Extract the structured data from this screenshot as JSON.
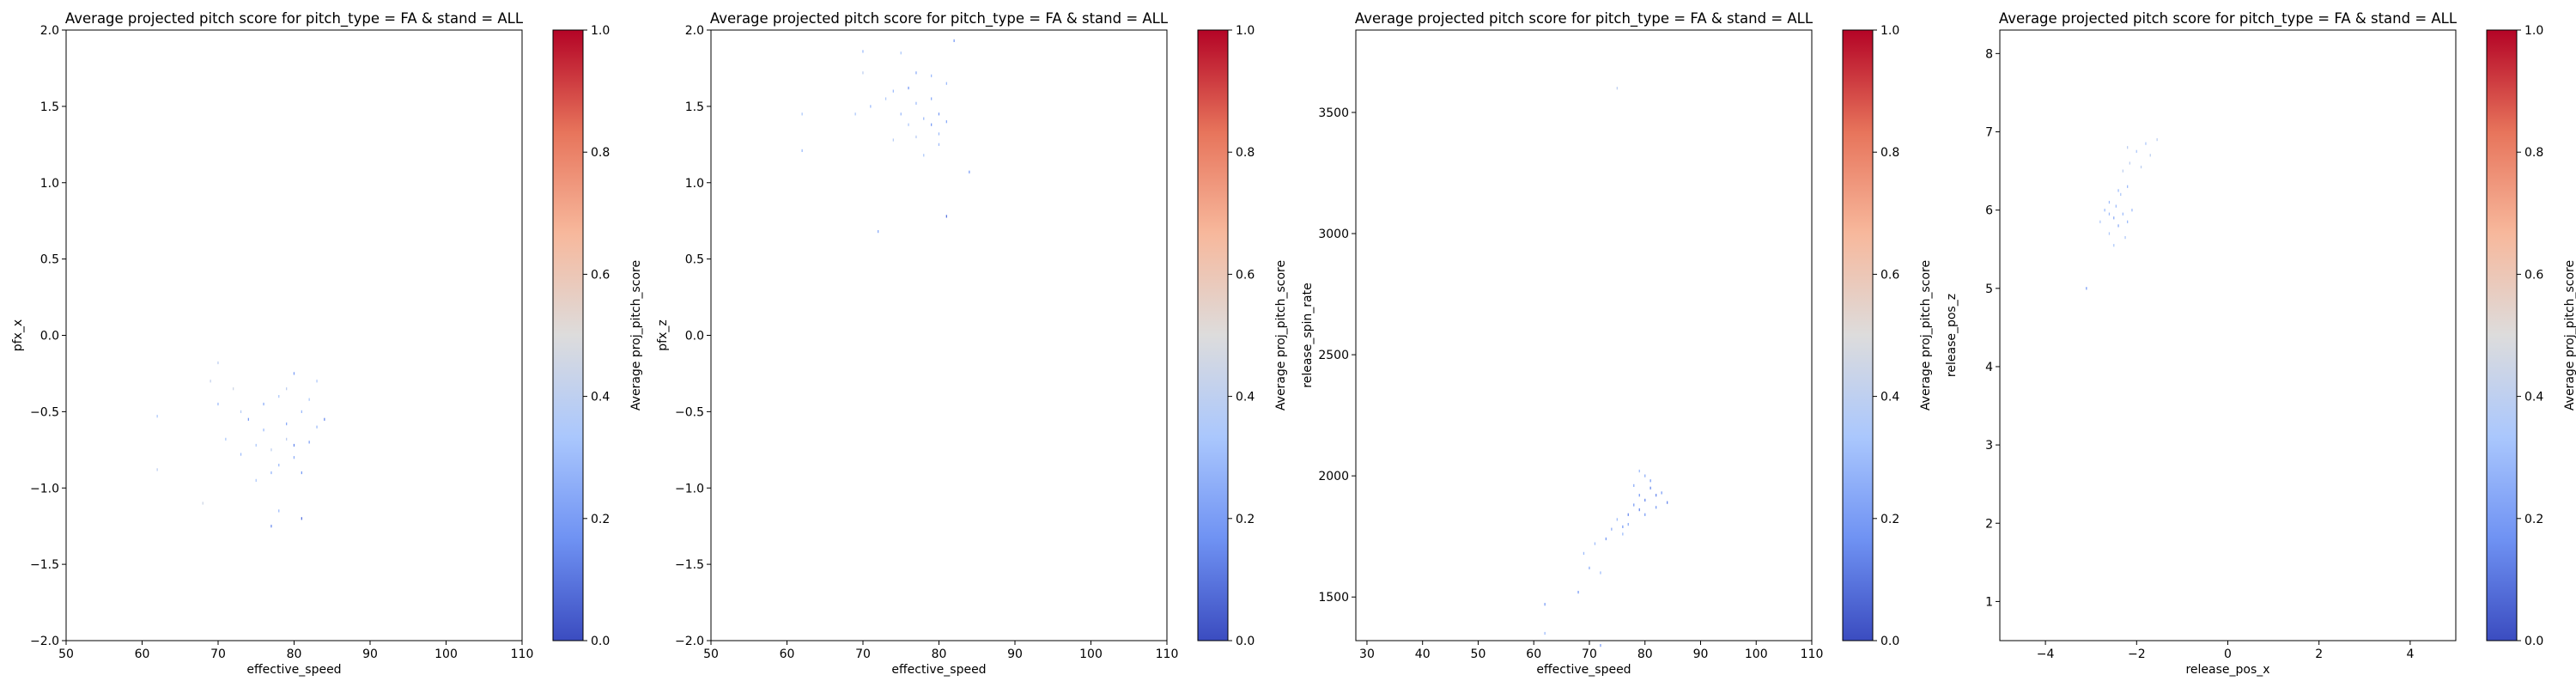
{
  "colorbar": {
    "label": "Average proj_pitch_score",
    "ticks": [
      0,
      0.2,
      0.4,
      0.6,
      0.8,
      1.0
    ],
    "tick_labels": [
      "0.0",
      "0.2",
      "0.4",
      "0.6",
      "0.8",
      "1.0"
    ],
    "colormap": "coolwarm",
    "colors": [
      "#3b4cc0",
      "#6f92f3",
      "#aac7fd",
      "#dddcdc",
      "#f7b89c",
      "#e7745b",
      "#b40426"
    ]
  },
  "chart_data": [
    {
      "type": "heatmap",
      "title": "Average projected pitch score for pitch_type = FA & stand = ALL",
      "xlabel": "effective_speed",
      "ylabel": "pfx_x",
      "xlim": [
        50,
        110
      ],
      "ylim": [
        -2.0,
        2.0
      ],
      "xticks": [
        50,
        60,
        70,
        80,
        90,
        100,
        110
      ],
      "xtick_labels": [
        "50",
        "60",
        "70",
        "80",
        "90",
        "100",
        "110"
      ],
      "yticks": [
        -2.0,
        -1.5,
        -1.0,
        -0.5,
        0.0,
        0.5,
        1.0,
        1.5,
        2.0
      ],
      "ytick_labels": [
        "−2.0",
        "−1.5",
        "−1.0",
        "−0.5",
        "0.0",
        "0.5",
        "1.0",
        "1.5",
        "2.0"
      ],
      "grid": false,
      "points": [
        [
          62,
          -0.53,
          0.35
        ],
        [
          62,
          -0.88,
          0.4
        ],
        [
          68,
          -1.1,
          0.45
        ],
        [
          69,
          -0.3,
          0.42
        ],
        [
          70,
          -0.18,
          0.4
        ],
        [
          70,
          -0.45,
          0.3
        ],
        [
          71,
          -0.68,
          0.35
        ],
        [
          72,
          -0.35,
          0.45
        ],
        [
          73,
          -0.5,
          0.38
        ],
        [
          73,
          -0.78,
          0.3
        ],
        [
          74,
          -0.55,
          0.2
        ],
        [
          75,
          -0.95,
          0.35
        ],
        [
          76,
          -0.45,
          0.25
        ],
        [
          76,
          -0.62,
          0.3
        ],
        [
          77,
          -0.75,
          0.4
        ],
        [
          77,
          -1.25,
          0.15
        ],
        [
          78,
          -0.4,
          0.35
        ],
        [
          78,
          -0.85,
          0.3
        ],
        [
          79,
          -0.58,
          0.25
        ],
        [
          79,
          -0.68,
          0.4
        ],
        [
          80,
          -0.25,
          0.2
        ],
        [
          80,
          -0.72,
          0.15
        ],
        [
          80,
          -0.8,
          0.25
        ],
        [
          81,
          -0.5,
          0.3
        ],
        [
          81,
          -0.9,
          0.2
        ],
        [
          81,
          -1.2,
          0.1
        ],
        [
          82,
          -0.42,
          0.35
        ],
        [
          82,
          -0.7,
          0.22
        ],
        [
          83,
          -0.6,
          0.3
        ],
        [
          84,
          -0.55,
          0.15
        ],
        [
          78,
          -1.15,
          0.3
        ],
        [
          75,
          -0.72,
          0.35
        ],
        [
          79,
          -0.35,
          0.4
        ],
        [
          83,
          -0.3,
          0.35
        ],
        [
          77,
          -0.9,
          0.28
        ]
      ]
    },
    {
      "type": "heatmap",
      "title": "Average projected pitch score for pitch_type = FA & stand = ALL",
      "xlabel": "effective_speed",
      "ylabel": "pfx_z",
      "xlim": [
        50,
        110
      ],
      "ylim": [
        -2.0,
        2.0
      ],
      "xticks": [
        50,
        60,
        70,
        80,
        90,
        100,
        110
      ],
      "xtick_labels": [
        "50",
        "60",
        "70",
        "80",
        "90",
        "100",
        "110"
      ],
      "yticks": [
        -2.0,
        -1.5,
        -1.0,
        -0.5,
        0.0,
        0.5,
        1.0,
        1.5,
        2.0
      ],
      "ytick_labels": [
        "−2.0",
        "−1.5",
        "−1.0",
        "−0.5",
        "0.0",
        "0.5",
        "1.0",
        "1.5",
        "2.0"
      ],
      "grid": false,
      "points": [
        [
          62,
          1.45,
          0.35
        ],
        [
          62,
          1.21,
          0.3
        ],
        [
          69,
          1.45,
          0.35
        ],
        [
          70,
          1.86,
          0.3
        ],
        [
          70,
          1.72,
          0.4
        ],
        [
          71,
          1.5,
          0.3
        ],
        [
          72,
          0.68,
          0.25
        ],
        [
          73,
          1.55,
          0.35
        ],
        [
          74,
          1.6,
          0.3
        ],
        [
          74,
          1.28,
          0.38
        ],
        [
          75,
          1.45,
          0.3
        ],
        [
          76,
          1.62,
          0.2
        ],
        [
          76,
          1.38,
          0.35
        ],
        [
          77,
          1.72,
          0.25
        ],
        [
          77,
          1.52,
          0.3
        ],
        [
          78,
          1.18,
          0.35
        ],
        [
          78,
          1.42,
          0.3
        ],
        [
          79,
          1.38,
          0.2
        ],
        [
          79,
          1.55,
          0.25
        ],
        [
          80,
          1.32,
          0.3
        ],
        [
          80,
          1.45,
          0.2
        ],
        [
          80,
          1.25,
          0.3
        ],
        [
          81,
          1.4,
          0.25
        ],
        [
          81,
          1.65,
          0.3
        ],
        [
          81,
          0.78,
          0.1
        ],
        [
          82,
          1.93,
          0.2
        ],
        [
          84,
          1.07,
          0.2
        ],
        [
          75,
          1.85,
          0.35
        ],
        [
          77,
          1.3,
          0.38
        ],
        [
          79,
          1.7,
          0.3
        ]
      ]
    },
    {
      "type": "heatmap",
      "title": "Average projected pitch score for pitch_type = FA & stand = ALL",
      "xlabel": "effective_speed",
      "ylabel": "release_spin_rate",
      "xlim": [
        28,
        110
      ],
      "ylim": [
        1320,
        3840
      ],
      "xticks": [
        30,
        40,
        50,
        60,
        70,
        80,
        90,
        100,
        110
      ],
      "xtick_labels": [
        "30",
        "40",
        "50",
        "60",
        "70",
        "80",
        "90",
        "100",
        "110"
      ],
      "yticks": [
        1500,
        2000,
        2500,
        3000,
        3500
      ],
      "ytick_labels": [
        "1500",
        "2000",
        "2500",
        "3000",
        "3500"
      ],
      "grid": false,
      "points": [
        [
          75,
          3600,
          0.4
        ],
        [
          62,
          1470,
          0.2
        ],
        [
          62,
          1350,
          0.3
        ],
        [
          68,
          1520,
          0.2
        ],
        [
          69,
          1680,
          0.3
        ],
        [
          70,
          1620,
          0.25
        ],
        [
          71,
          1720,
          0.3
        ],
        [
          72,
          1300,
          0.2
        ],
        [
          72,
          1600,
          0.3
        ],
        [
          73,
          1740,
          0.2
        ],
        [
          74,
          1780,
          0.25
        ],
        [
          75,
          1820,
          0.3
        ],
        [
          76,
          1790,
          0.2
        ],
        [
          77,
          1840,
          0.15
        ],
        [
          77,
          1800,
          0.25
        ],
        [
          78,
          1880,
          0.2
        ],
        [
          78,
          1960,
          0.25
        ],
        [
          79,
          1860,
          0.15
        ],
        [
          79,
          1920,
          0.2
        ],
        [
          80,
          2000,
          0.25
        ],
        [
          80,
          1900,
          0.15
        ],
        [
          80,
          1840,
          0.2
        ],
        [
          81,
          1950,
          0.15
        ],
        [
          81,
          1980,
          0.2
        ],
        [
          82,
          1920,
          0.15
        ],
        [
          82,
          1870,
          0.2
        ],
        [
          83,
          1930,
          0.2
        ],
        [
          84,
          1890,
          0.15
        ],
        [
          79,
          2020,
          0.3
        ],
        [
          76,
          1760,
          0.3
        ]
      ]
    },
    {
      "type": "heatmap",
      "title": "Average projected pitch score for pitch_type = FA & stand = ALL",
      "xlabel": "release_pos_x",
      "ylabel": "release_pos_z",
      "xlim": [
        -5,
        5
      ],
      "ylim": [
        0.5,
        8.3
      ],
      "xticks": [
        -4,
        -2,
        0,
        2,
        4
      ],
      "xtick_labels": [
        "−4",
        "−2",
        "0",
        "2",
        "4"
      ],
      "yticks": [
        1,
        2,
        3,
        4,
        5,
        6,
        7,
        8
      ],
      "ytick_labels": [
        "1",
        "2",
        "3",
        "4",
        "5",
        "6",
        "7",
        "8"
      ],
      "grid": false,
      "points": [
        [
          -3.1,
          5.0,
          0.2
        ],
        [
          -2.8,
          5.85,
          0.35
        ],
        [
          -2.7,
          6.0,
          0.3
        ],
        [
          -2.6,
          5.7,
          0.35
        ],
        [
          -2.6,
          6.1,
          0.3
        ],
        [
          -2.5,
          5.9,
          0.25
        ],
        [
          -2.5,
          5.55,
          0.35
        ],
        [
          -2.45,
          6.05,
          0.3
        ],
        [
          -2.4,
          5.8,
          0.25
        ],
        [
          -2.35,
          6.2,
          0.35
        ],
        [
          -2.3,
          5.95,
          0.3
        ],
        [
          -2.3,
          6.5,
          0.4
        ],
        [
          -2.25,
          5.65,
          0.35
        ],
        [
          -2.2,
          6.3,
          0.3
        ],
        [
          -2.2,
          5.85,
          0.3
        ],
        [
          -2.15,
          6.6,
          0.4
        ],
        [
          -2.1,
          6.0,
          0.3
        ],
        [
          -2.0,
          6.75,
          0.35
        ],
        [
          -1.9,
          6.55,
          0.4
        ],
        [
          -1.8,
          6.85,
          0.35
        ],
        [
          -1.7,
          6.7,
          0.4
        ],
        [
          -1.55,
          6.9,
          0.4
        ],
        [
          -2.6,
          5.95,
          0.3
        ],
        [
          -2.4,
          6.25,
          0.3
        ],
        [
          -2.2,
          6.8,
          0.4
        ]
      ]
    }
  ]
}
